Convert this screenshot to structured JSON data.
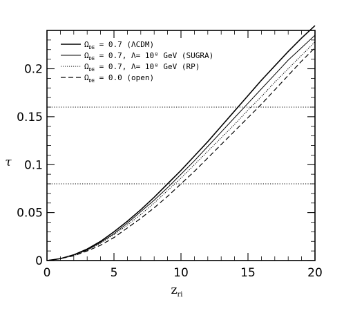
{
  "chart_data": {
    "type": "line",
    "title": "",
    "xlabel": "z",
    "xlabel_sub": "ri",
    "ylabel": "τ",
    "xlim": [
      0,
      20
    ],
    "ylim": [
      0,
      0.24
    ],
    "xticks": [
      0,
      5,
      10,
      15,
      20
    ],
    "xtick_labels": [
      "0",
      "5",
      "10",
      "15",
      "20"
    ],
    "yticks": [
      0,
      0.05,
      0.1,
      0.15,
      0.2
    ],
    "ytick_labels": [
      "0",
      "0.05",
      "0.1",
      "0.15",
      "0.2"
    ],
    "grid": false,
    "legend_position": "top-left",
    "x": [
      0,
      1,
      2,
      3,
      4,
      5,
      6,
      7,
      8,
      9,
      10,
      11,
      12,
      13,
      14,
      15,
      16,
      17,
      18,
      19,
      20
    ],
    "series": [
      {
        "legend": [
          "Ω",
          "DE",
          " = 0.7   (ΛCDM)"
        ],
        "style": "solid",
        "width": 1.6,
        "values": [
          0,
          0.002,
          0.006,
          0.012,
          0.02,
          0.03,
          0.041,
          0.053,
          0.066,
          0.08,
          0.094,
          0.109,
          0.124,
          0.14,
          0.156,
          0.172,
          0.188,
          0.203,
          0.218,
          0.232,
          0.245
        ]
      },
      {
        "legend": [
          "Ω",
          "DE",
          " = 0.7, Λ= 10⁸ GeV   (SUGRA)"
        ],
        "style": "solid",
        "width": 1.0,
        "values": [
          0,
          0.002,
          0.006,
          0.011,
          0.019,
          0.028,
          0.039,
          0.051,
          0.063,
          0.076,
          0.09,
          0.104,
          0.119,
          0.134,
          0.149,
          0.164,
          0.179,
          0.194,
          0.209,
          0.222,
          0.235
        ]
      },
      {
        "legend": [
          "Ω",
          "DE",
          " = 0.7, Λ= 10⁸ GeV   (RP)"
        ],
        "style": "dotted",
        "width": 1.1,
        "values": [
          0,
          0.002,
          0.005,
          0.011,
          0.018,
          0.027,
          0.037,
          0.048,
          0.06,
          0.073,
          0.086,
          0.1,
          0.114,
          0.128,
          0.142,
          0.157,
          0.171,
          0.186,
          0.2,
          0.214,
          0.228
        ]
      },
      {
        "legend": [
          "Ω",
          "DE",
          " = 0.0   (open)"
        ],
        "style": "dashed",
        "width": 1.2,
        "values": [
          0,
          0.002,
          0.005,
          0.01,
          0.016,
          0.024,
          0.034,
          0.044,
          0.055,
          0.067,
          0.08,
          0.093,
          0.107,
          0.121,
          0.135,
          0.149,
          0.163,
          0.178,
          0.193,
          0.208,
          0.222
        ]
      }
    ],
    "horizontal_lines": [
      0.08,
      0.16
    ]
  }
}
